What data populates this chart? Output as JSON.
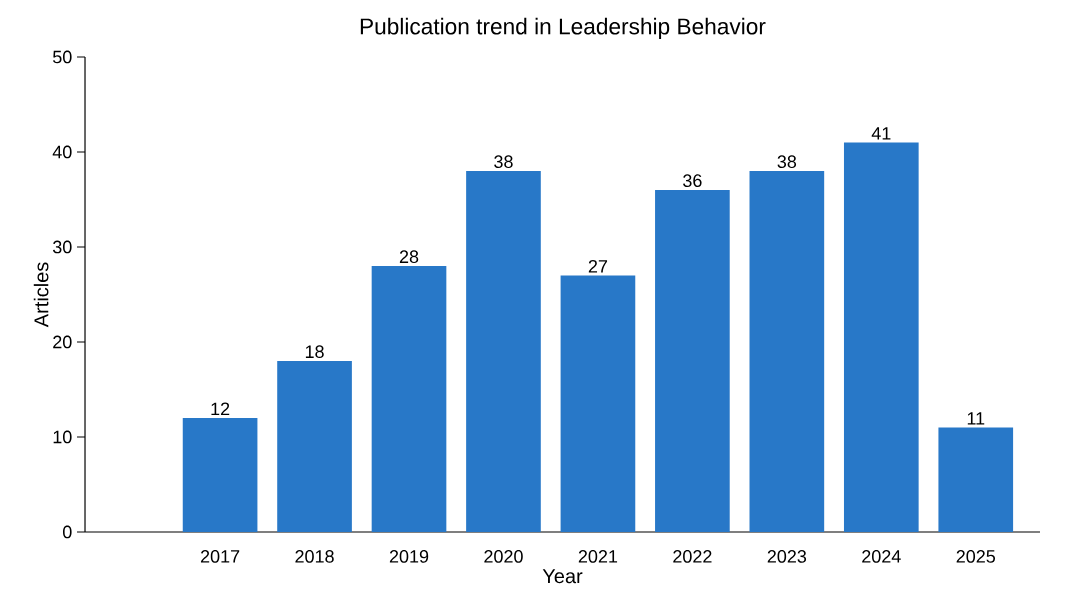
{
  "chart_data": {
    "type": "bar",
    "title": "Publication trend in Leadership Behavior",
    "xlabel": "Year",
    "ylabel": "Articles",
    "categories": [
      "2017",
      "2018",
      "2019",
      "2020",
      "2021",
      "2022",
      "2023",
      "2024",
      "2025"
    ],
    "values": [
      12,
      18,
      28,
      38,
      27,
      36,
      38,
      41,
      11
    ],
    "color": "#2878c8",
    "ylim": [
      0,
      50
    ],
    "yticks": [
      0,
      10,
      20,
      30,
      40,
      50
    ],
    "data_labels": true,
    "grid": false
  }
}
